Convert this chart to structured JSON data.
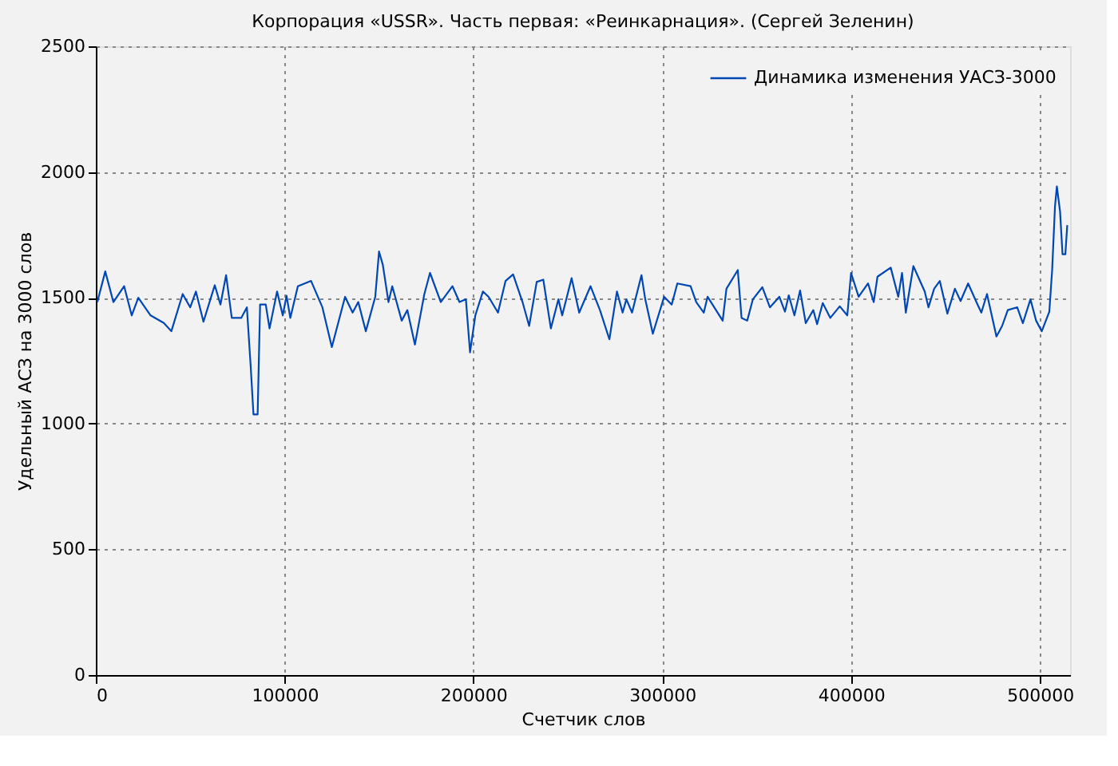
{
  "chart_data": {
    "type": "line",
    "title": "Корпорация «USSR». Часть первая: «Реинкарнация». (Сергей Зеленин)",
    "xlabel": "Счетчик слов",
    "ylabel": "Удельный АСЗ на 3000 слов",
    "xlim": [
      0,
      516000
    ],
    "ylim": [
      0,
      2500
    ],
    "xticks": [
      0,
      100000,
      200000,
      300000,
      400000,
      500000
    ],
    "yticks": [
      0,
      500,
      1000,
      1500,
      2000,
      2500
    ],
    "grid": true,
    "legend": "top right",
    "line_style": "solid",
    "marker": "none",
    "x": [
      800,
      5000,
      9300,
      15000,
      19000,
      22500,
      29000,
      36000,
      40000,
      46000,
      50000,
      53000,
      57000,
      63000,
      66000,
      69000,
      72000,
      77000,
      80000,
      82000,
      83500,
      85700,
      87000,
      90000,
      92000,
      96000,
      99000,
      101000,
      103000,
      107000,
      114000,
      120000,
      125000,
      132000,
      136000,
      139000,
      143000,
      148000,
      150000,
      152000,
      155000,
      157000,
      162000,
      165000,
      169000,
      174000,
      177000,
      182700,
      188900,
      192600,
      196000,
      198200,
      201000,
      205000,
      208000,
      213000,
      217000,
      221000,
      226000,
      229500,
      233500,
      237000,
      241000,
      245000,
      247000,
      252000,
      256000,
      262000,
      267000,
      272000,
      276000,
      279000,
      281000,
      284000,
      289000,
      291000,
      295000,
      301000,
      305000,
      308000,
      315000,
      318000,
      322000,
      324000,
      332000,
      334000,
      340000,
      342000,
      345000,
      348000,
      353000,
      357000,
      362000,
      365000,
      367000,
      370000,
      373000,
      376000,
      380000,
      382000,
      385000,
      389000,
      394000,
      398000,
      400000,
      404000,
      409000,
      412000,
      414000,
      421000,
      425000,
      427000,
      429000,
      433000,
      439000,
      441000,
      444000,
      447000,
      451000,
      455000,
      458000,
      462000,
      467000,
      469000,
      472000,
      477000,
      480000,
      483000,
      488000,
      491000,
      495000,
      498000,
      501000,
      505000,
      506500,
      508000,
      509000,
      510700,
      512000,
      513500,
      514500
    ],
    "series": [
      {
        "name": "Динамика изменения УАСЗ-3000",
        "color": "#0047b3",
        "values": [
          1483,
          1605,
          1483,
          1546,
          1430,
          1500,
          1430,
          1400,
          1367,
          1515,
          1462,
          1525,
          1405,
          1550,
          1473,
          1590,
          1420,
          1420,
          1462,
          1230,
          1036,
          1036,
          1473,
          1473,
          1378,
          1525,
          1430,
          1508,
          1420,
          1546,
          1567,
          1462,
          1304,
          1504,
          1441,
          1483,
          1367,
          1504,
          1684,
          1631,
          1483,
          1546,
          1409,
          1451,
          1314,
          1515,
          1599,
          1483,
          1546,
          1483,
          1494,
          1283,
          1430,
          1525,
          1504,
          1441,
          1567,
          1593,
          1483,
          1388,
          1563,
          1572,
          1378,
          1494,
          1430,
          1578,
          1441,
          1546,
          1451,
          1335,
          1525,
          1441,
          1494,
          1441,
          1590,
          1494,
          1357,
          1504,
          1473,
          1557,
          1546,
          1483,
          1441,
          1504,
          1409,
          1536,
          1610,
          1420,
          1409,
          1494,
          1542,
          1462,
          1504,
          1445,
          1510,
          1430,
          1529,
          1399,
          1451,
          1395,
          1479,
          1420,
          1466,
          1430,
          1599,
          1504,
          1557,
          1483,
          1584,
          1620,
          1504,
          1599,
          1441,
          1626,
          1525,
          1462,
          1536,
          1567,
          1437,
          1536,
          1487,
          1557,
          1473,
          1441,
          1515,
          1346,
          1388,
          1451,
          1462,
          1399,
          1494,
          1409,
          1367,
          1445,
          1610,
          1863,
          1943,
          1842,
          1673,
          1673,
          1789
        ]
      }
    ]
  }
}
